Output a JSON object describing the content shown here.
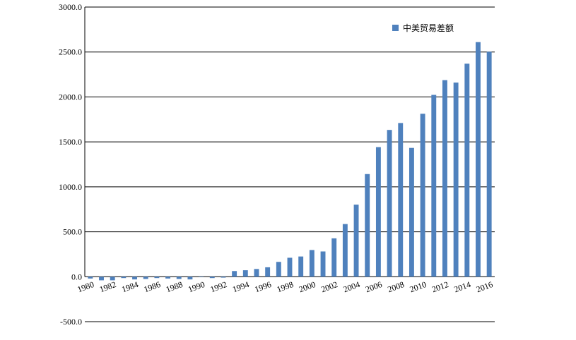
{
  "chart_data": {
    "type": "bar",
    "categories": [
      "1980",
      null,
      "1982",
      null,
      "1984",
      null,
      "1986",
      null,
      "1988",
      null,
      "1990",
      null,
      "1992",
      null,
      "1994",
      null,
      "1996",
      null,
      "1998",
      null,
      "2000",
      null,
      "2002",
      null,
      "2004",
      null,
      "2006",
      null,
      "2008",
      null,
      "2010",
      null,
      "2012",
      null,
      "2014",
      null,
      "2016"
    ],
    "series": [
      {
        "name": "中美贸易差额",
        "color": "#4f81bd",
        "values": [
          -20,
          -40,
          -40,
          -15,
          -30,
          -25,
          -15,
          -20,
          -25,
          -30,
          -5,
          -15,
          -10,
          63,
          72,
          86,
          105,
          165,
          211,
          225,
          297,
          281,
          427,
          586,
          802,
          1142,
          1442,
          1633,
          1710,
          1433,
          1813,
          2023,
          2187,
          2160,
          2370,
          2610,
          2503
        ]
      }
    ],
    "ylim": [
      -500,
      3000
    ],
    "yticks": [
      {
        "value": -500,
        "label": "-500.0"
      },
      {
        "value": 0,
        "label": "0.0"
      },
      {
        "value": 500,
        "label": "500.0"
      },
      {
        "value": 1000,
        "label": "1000.0"
      },
      {
        "value": 1500,
        "label": "1500.0"
      },
      {
        "value": 2000,
        "label": "2000.0"
      },
      {
        "value": 2500,
        "label": "2500.0"
      },
      {
        "value": 3000,
        "label": "3000.0"
      }
    ],
    "grid": true,
    "legend": "top-right"
  }
}
